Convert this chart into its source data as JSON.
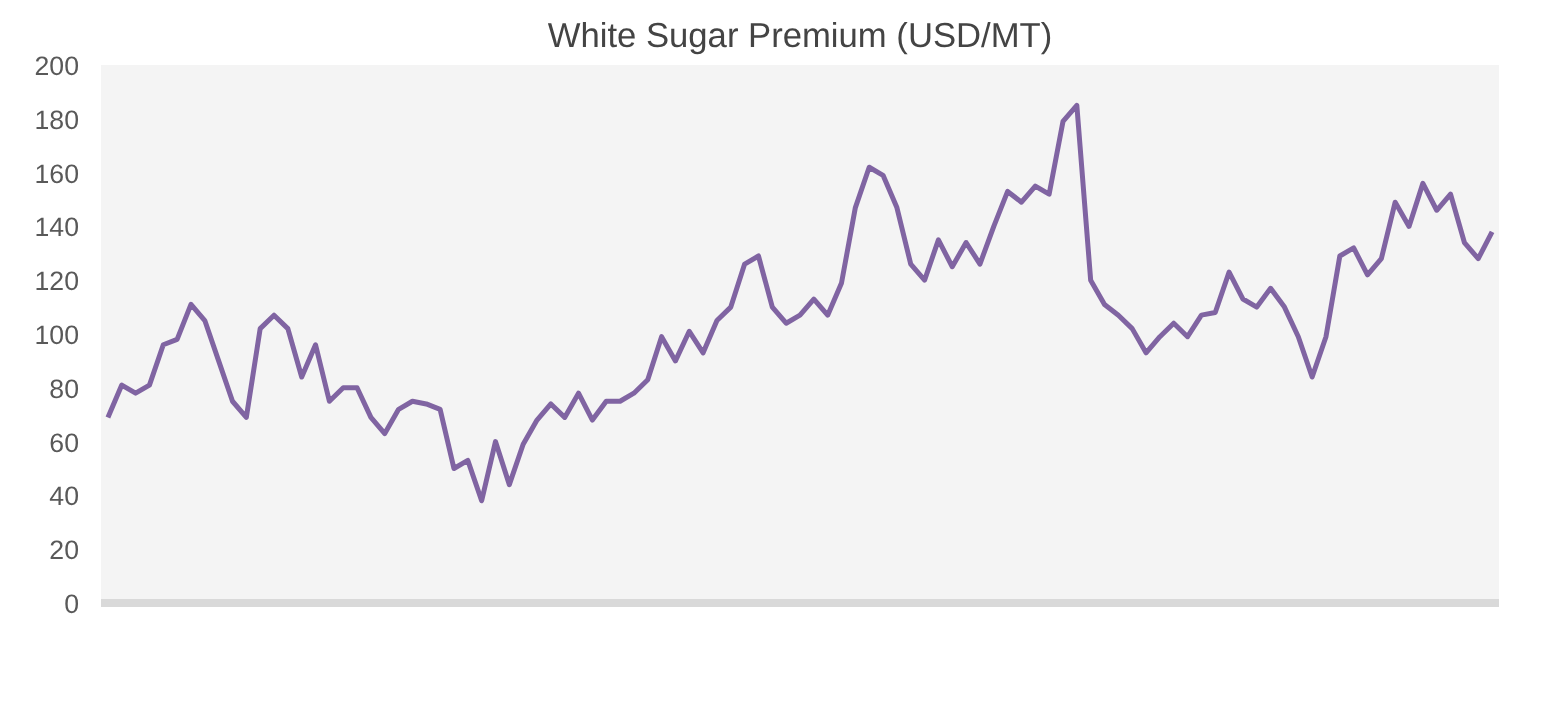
{
  "chart_data": {
    "type": "line",
    "title": "White Sugar Premium (USD/MT)",
    "categories": [
      null,
      null,
      null,
      null,
      null,
      null,
      null,
      null,
      null,
      null,
      null,
      null,
      null,
      null,
      null,
      null,
      null,
      null,
      null,
      null,
      null,
      null,
      null,
      null,
      null,
      null,
      null,
      null,
      null,
      null,
      null,
      null,
      null,
      null,
      null,
      null,
      null,
      null,
      null,
      null,
      null,
      null,
      null,
      null,
      null,
      null,
      null,
      null,
      null,
      null,
      null,
      null,
      null,
      null,
      null,
      null,
      null,
      null,
      null,
      null,
      null,
      null,
      null,
      null,
      null,
      null,
      null,
      null,
      null,
      null,
      null,
      null,
      null,
      null,
      null,
      null,
      null,
      null,
      null,
      null,
      null,
      null,
      null,
      null,
      null,
      null,
      null,
      null,
      null,
      null,
      null,
      null,
      null,
      null,
      null,
      null,
      null,
      null,
      null,
      null,
      null
    ],
    "series": [
      {
        "color": "#8064a2",
        "values": [
          69,
          81,
          78,
          81,
          96,
          98,
          111,
          105,
          90,
          75,
          69,
          102,
          107,
          102,
          84,
          96,
          75,
          80,
          80,
          69,
          63,
          72,
          75,
          74,
          72,
          50,
          53,
          38,
          60,
          44,
          59,
          68,
          74,
          69,
          78,
          68,
          75,
          75,
          78,
          83,
          99,
          90,
          101,
          93,
          105,
          110,
          126,
          129,
          110,
          104,
          107,
          113,
          107,
          119,
          147,
          162,
          159,
          147,
          126,
          120,
          135,
          125,
          134,
          126,
          140,
          153,
          149,
          155,
          152,
          179,
          185,
          120,
          111,
          107,
          102,
          93,
          99,
          104,
          99,
          107,
          108,
          123,
          113,
          110,
          117,
          110,
          99,
          84,
          99,
          129,
          132,
          122,
          128,
          149,
          140,
          156,
          146,
          152,
          134,
          128,
          138
        ]
      }
    ],
    "ylim": [
      0,
      200
    ],
    "yticks": [
      0,
      20,
      40,
      60,
      80,
      100,
      120,
      140,
      160,
      180,
      200
    ],
    "grid": false,
    "marker": "none",
    "line_style": "solid"
  }
}
